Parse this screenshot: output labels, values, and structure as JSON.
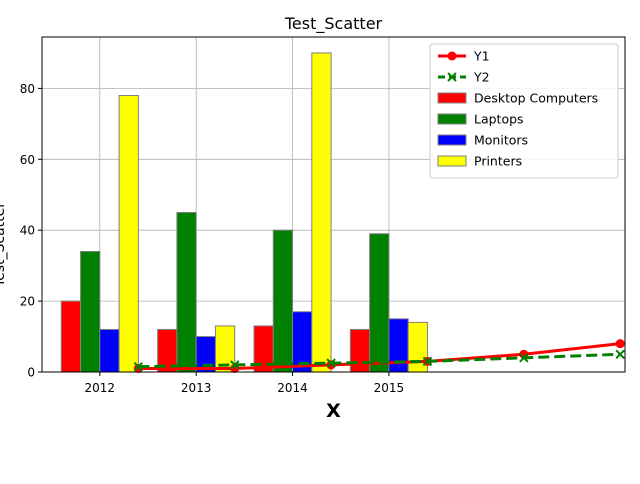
{
  "chart_data": {
    "type": "bar",
    "title": "Test_Scatter",
    "xlabel": "X",
    "ylabel": "Test_Scatter",
    "x_tick_labels": [
      "2012",
      "2013",
      "2014",
      "2015"
    ],
    "y_tick_labels": [
      "0",
      "20",
      "40",
      "60",
      "80"
    ],
    "x_range": [
      0,
      6.05
    ],
    "ylim": [
      0,
      94.5
    ],
    "grid": true,
    "legend_position": "top-right",
    "bar_series": [
      {
        "name": "Desktop Computers",
        "color": "#ff0000",
        "values": [
          20,
          12,
          13,
          12
        ]
      },
      {
        "name": "Laptops",
        "color": "#008000",
        "values": [
          34,
          45,
          40,
          39
        ]
      },
      {
        "name": "Monitors",
        "color": "#0000ff",
        "values": [
          12,
          10,
          17,
          15
        ]
      },
      {
        "name": "Printers",
        "color": "#ffff00",
        "values": [
          78,
          13,
          90,
          14
        ]
      }
    ],
    "line_series": [
      {
        "name": "Y1",
        "color": "#ff0000",
        "style": "solid",
        "marker": "circle",
        "x": [
          1,
          2,
          3,
          4,
          5,
          6
        ],
        "y": [
          1,
          1,
          2,
          3,
          5,
          8
        ]
      },
      {
        "name": "Y2",
        "color": "#008000",
        "style": "dashed",
        "marker": "x",
        "x": [
          1,
          2,
          3,
          4,
          5,
          6
        ],
        "y": [
          1.5,
          2,
          2.5,
          3,
          4,
          5
        ]
      }
    ]
  }
}
